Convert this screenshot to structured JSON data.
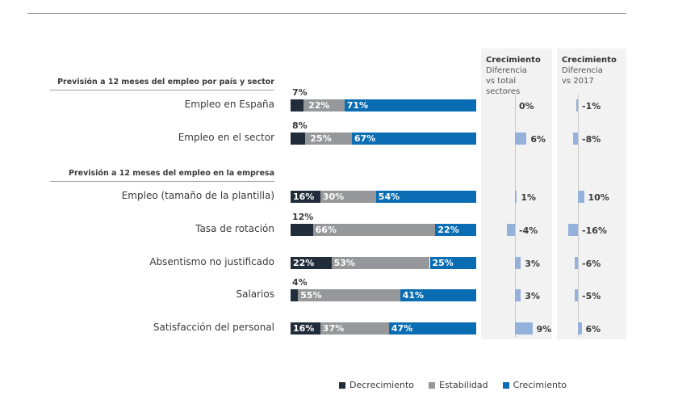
{
  "colors": {
    "decrecimiento": "#222d3b",
    "estabilidad": "#96979a",
    "crecimiento": "#0a6db3",
    "diff_bar": "#94b1dc"
  },
  "chart_data": {
    "type": "bar",
    "orientation": "horizontal",
    "stacked": true,
    "title": "",
    "sections": [
      {
        "title": "Previsión a 12 meses del empleo por país y sector",
        "rows": [
          0,
          1
        ]
      },
      {
        "title": "Previsión a 12 meses del empleo en la empresa",
        "rows": [
          2,
          3,
          4,
          5,
          6
        ]
      }
    ],
    "categories": [
      "Empleo en España",
      "Empleo en el sector",
      "Empleo  (tamaño de la plantilla)",
      "Tasa de rotación",
      "Absentismo no justificado",
      "Salarios",
      "Satisfacción del personal"
    ],
    "series": [
      {
        "name": "Decrecimiento",
        "values": [
          7,
          8,
          16,
          12,
          22,
          4,
          16
        ]
      },
      {
        "name": "Estabilidad",
        "values": [
          22,
          25,
          30,
          66,
          53,
          55,
          37
        ]
      },
      {
        "name": "Crecimiento",
        "values": [
          71,
          67,
          54,
          22,
          25,
          41,
          47
        ]
      }
    ],
    "value_labels": [
      [
        "7%",
        "22%",
        "71%"
      ],
      [
        "8%",
        "25%",
        "67%"
      ],
      [
        "16%",
        "30%",
        "54%"
      ],
      [
        "12%",
        "66%",
        "22%"
      ],
      [
        "22%",
        "53%",
        "25%"
      ],
      [
        "4%",
        "55%",
        "41%"
      ],
      [
        "16%",
        "37%",
        "47%"
      ]
    ],
    "xlim": [
      0,
      100
    ],
    "legend": {
      "position": "bottom",
      "entries": [
        "Decrecimiento",
        "Estabilidad",
        "Crecimiento"
      ]
    },
    "difference_panels": [
      {
        "title": "Crecimiento",
        "subtitle_1": "Diferencia",
        "subtitle_2": "vs total sectores",
        "values": [
          0,
          6,
          1,
          -4,
          3,
          3,
          9
        ],
        "labels": [
          "0%",
          "6%",
          "1%",
          "-4%",
          "3%",
          "3%",
          "9%"
        ]
      },
      {
        "title": "Crecimiento",
        "subtitle_1": "Diferencia",
        "subtitle_2": "vs 2017",
        "values": [
          -1,
          -8,
          10,
          -16,
          -6,
          -5,
          6
        ],
        "labels": [
          "-1%",
          "-8%",
          "10%",
          "-16%",
          "-6%",
          "-5%",
          "6%"
        ]
      }
    ]
  }
}
